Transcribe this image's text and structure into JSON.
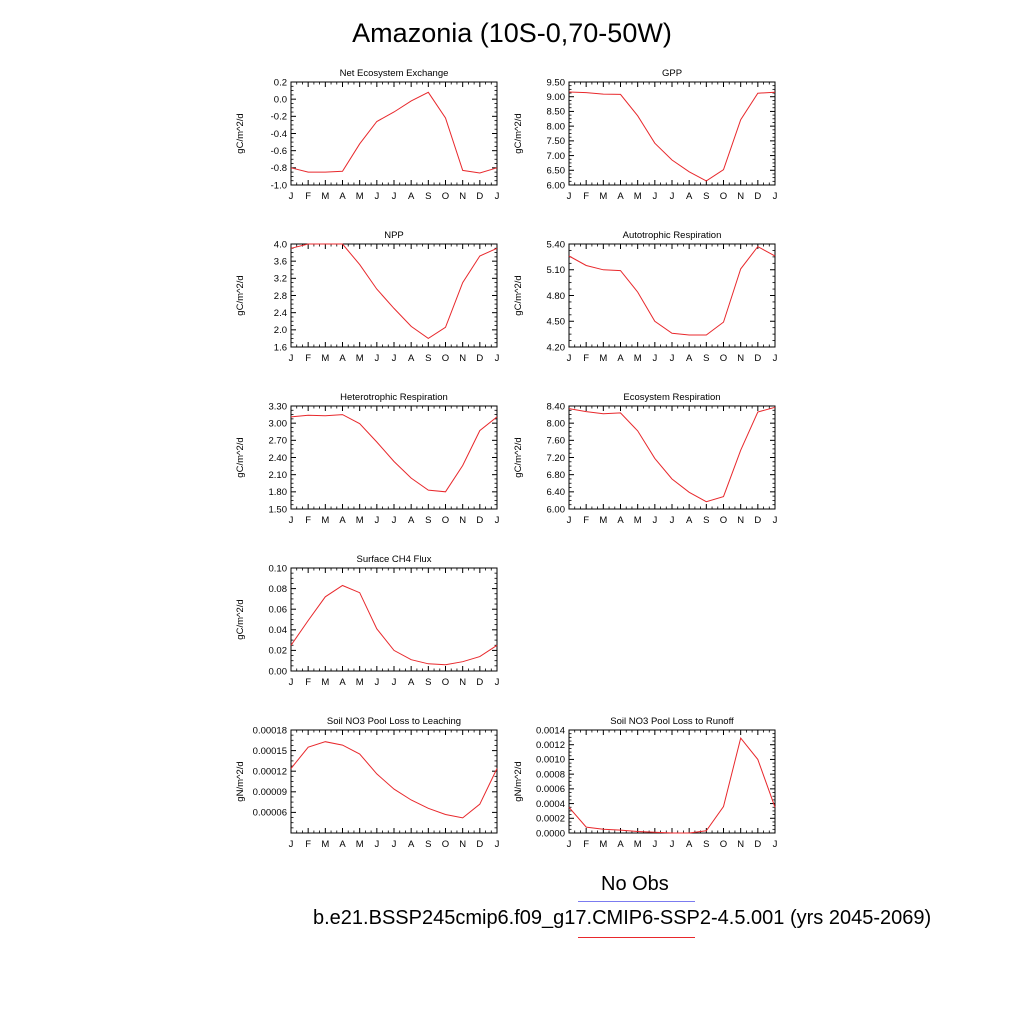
{
  "title": "Amazonia (10S-0,70-50W)",
  "colors": {
    "model": "#e8282c",
    "obs": "#7b7bf0",
    "axis": "#000000"
  },
  "month_labels": [
    "J",
    "F",
    "M",
    "A",
    "M",
    "J",
    "J",
    "A",
    "S",
    "O",
    "N",
    "D",
    "J"
  ],
  "legend": {
    "obs_label": "No Obs",
    "model_label": "b.e21.BSSP245cmip6.f09_g17.CMIP6-SSP2-4.5.001 (yrs 2045-2069)"
  },
  "chart_data": [
    {
      "type": "line",
      "title": "Net Ecosystem Exchange",
      "ylabel": "gC/m^2/d",
      "ylim": [
        -1.0,
        0.2
      ],
      "yticks": [
        -1.0,
        -0.8,
        -0.6,
        -0.4,
        -0.2,
        0.0,
        0.2
      ],
      "ytick_labels": [
        "-1.0",
        "-0.8",
        "-0.6",
        "-0.4",
        "-0.2",
        "0.0",
        "0.2"
      ],
      "values": [
        -0.8,
        -0.85,
        -0.85,
        -0.84,
        -0.52,
        -0.26,
        -0.15,
        -0.02,
        0.08,
        -0.22,
        -0.83,
        -0.86,
        -0.8
      ]
    },
    {
      "type": "line",
      "title": "GPP",
      "ylabel": "gC/m^2/d",
      "ylim": [
        6.0,
        9.5
      ],
      "yticks": [
        6.0,
        6.5,
        7.0,
        7.5,
        8.0,
        8.5,
        9.0,
        9.5
      ],
      "ytick_labels": [
        "6.00",
        "6.50",
        "7.00",
        "7.50",
        "8.00",
        "8.50",
        "9.00",
        "9.50"
      ],
      "values": [
        9.16,
        9.14,
        9.09,
        9.08,
        8.35,
        7.42,
        6.85,
        6.45,
        6.14,
        6.52,
        8.22,
        9.12,
        9.15
      ]
    },
    {
      "type": "line",
      "title": "NPP",
      "ylabel": "gC/m^2/d",
      "ylim": [
        1.6,
        4.0
      ],
      "yticks": [
        1.6,
        2.0,
        2.4,
        2.8,
        3.2,
        3.6,
        4.0
      ],
      "ytick_labels": [
        "1.6",
        "2.0",
        "2.4",
        "2.8",
        "3.2",
        "3.6",
        "4.0"
      ],
      "values": [
        3.9,
        4.0,
        4.0,
        4.0,
        3.52,
        2.95,
        2.5,
        2.08,
        1.8,
        2.06,
        3.1,
        3.72,
        3.9
      ]
    },
    {
      "type": "line",
      "title": "Autotrophic Respiration",
      "ylabel": "gC/m^2/d",
      "ylim": [
        4.2,
        5.4
      ],
      "yticks": [
        4.2,
        4.5,
        4.8,
        5.1,
        5.4
      ],
      "ytick_labels": [
        "4.20",
        "4.50",
        "4.80",
        "5.10",
        "5.40"
      ],
      "values": [
        5.26,
        5.15,
        5.1,
        5.09,
        4.84,
        4.5,
        4.36,
        4.34,
        4.34,
        4.49,
        5.11,
        5.37,
        5.26
      ]
    },
    {
      "type": "line",
      "title": "Heterotrophic Respiration",
      "ylabel": "gC/m^2/d",
      "ylim": [
        1.5,
        3.3
      ],
      "yticks": [
        1.5,
        1.8,
        2.1,
        2.4,
        2.7,
        3.0,
        3.3
      ],
      "ytick_labels": [
        "1.50",
        "1.80",
        "2.10",
        "2.40",
        "2.70",
        "3.00",
        "3.30"
      ],
      "values": [
        3.11,
        3.14,
        3.13,
        3.15,
        2.99,
        2.67,
        2.33,
        2.04,
        1.83,
        1.8,
        2.26,
        2.87,
        3.11
      ]
    },
    {
      "type": "line",
      "title": "Ecosystem Respiration",
      "ylabel": "gC/m^2/d",
      "ylim": [
        6.0,
        8.4
      ],
      "yticks": [
        6.0,
        6.4,
        6.8,
        7.2,
        7.6,
        8.0,
        8.4
      ],
      "ytick_labels": [
        "6.00",
        "6.40",
        "6.80",
        "7.20",
        "7.60",
        "8.00",
        "8.40"
      ],
      "values": [
        8.34,
        8.27,
        8.22,
        8.24,
        7.82,
        7.18,
        6.7,
        6.39,
        6.17,
        6.29,
        7.37,
        8.26,
        8.37
      ]
    },
    {
      "type": "line",
      "title": "Surface CH4 Flux",
      "ylabel": "gC/m^2/d",
      "ylim": [
        0.0,
        0.1
      ],
      "yticks": [
        0.0,
        0.02,
        0.04,
        0.06,
        0.08,
        0.1
      ],
      "ytick_labels": [
        "0.00",
        "0.02",
        "0.04",
        "0.06",
        "0.08",
        "0.10"
      ],
      "values": [
        0.025,
        0.049,
        0.072,
        0.083,
        0.076,
        0.041,
        0.02,
        0.011,
        0.007,
        0.006,
        0.009,
        0.014,
        0.025
      ]
    },
    {
      "type": "line",
      "title": "Soil NO3 Pool Loss to Leaching",
      "ylabel": "gN/m^2/d",
      "ylim": [
        3e-05,
        0.00018
      ],
      "yticks": [
        6e-05,
        9e-05,
        0.00012,
        0.00015,
        0.00018
      ],
      "ytick_labels": [
        "0.00006",
        "0.00009",
        "0.00012",
        "0.00015",
        "0.00018"
      ],
      "values": [
        0.000124,
        0.000155,
        0.000163,
        0.000158,
        0.000145,
        0.000116,
        9.4e-05,
        7.8e-05,
        6.6e-05,
        5.7e-05,
        5.2e-05,
        7.2e-05,
        0.000124
      ]
    },
    {
      "type": "line",
      "title": "Soil NO3 Pool Loss to Runoff",
      "ylabel": "gN/m^2/d",
      "ylim": [
        0.0,
        0.0014
      ],
      "yticks": [
        0.0,
        0.0002,
        0.0004,
        0.0006,
        0.0008,
        0.001,
        0.0012,
        0.0014
      ],
      "ytick_labels": [
        "0.0000",
        "0.0002",
        "0.0004",
        "0.0006",
        "0.0008",
        "0.0010",
        "0.0012",
        "0.0014"
      ],
      "values": [
        0.00035,
        8e-05,
        5e-05,
        4e-05,
        2e-05,
        1e-05,
        0.0,
        0.0,
        3e-05,
        0.00036,
        0.00129,
        0.001,
        0.00035
      ]
    }
  ]
}
